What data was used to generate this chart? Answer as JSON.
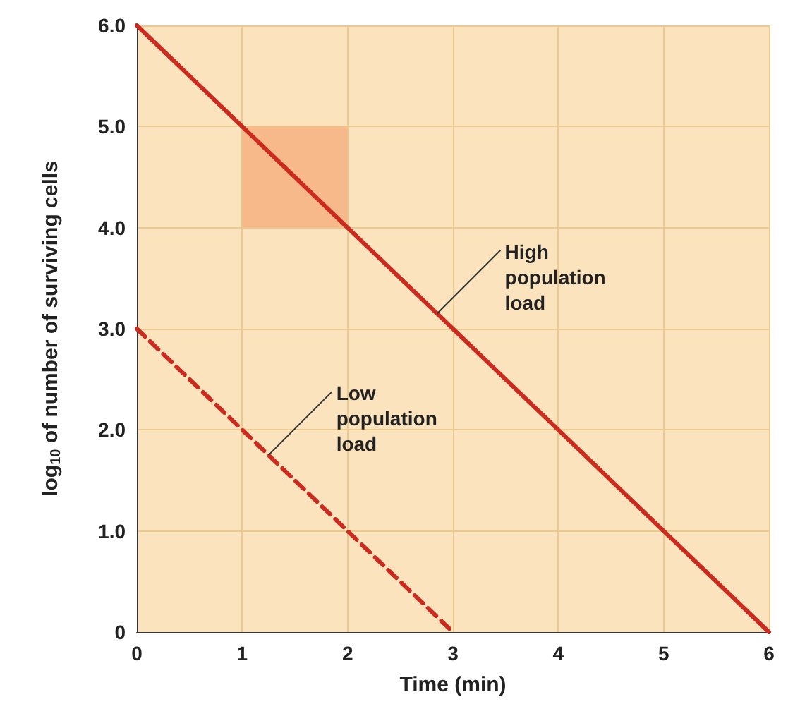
{
  "chart_data": {
    "type": "line",
    "xlabel": "Time (min)",
    "ylabel": "log$_{10}$ of number of surviving cells",
    "xlim": [
      0,
      6
    ],
    "xticks": [
      0,
      1,
      2,
      3,
      4,
      5,
      6
    ],
    "ylim": [
      0,
      6
    ],
    "yticks": [
      {
        "value": 0,
        "label": "0"
      },
      {
        "value": 1,
        "label": "1.0"
      },
      {
        "value": 2,
        "label": "2.0"
      },
      {
        "value": 3,
        "label": "3.0"
      },
      {
        "value": 4,
        "label": "4.0"
      },
      {
        "value": 5,
        "label": "5.0"
      },
      {
        "value": 6,
        "label": "6.0"
      }
    ],
    "grid": true,
    "marker": "none",
    "series": [
      {
        "type": "bar",
        "color": "#f7b98a",
        "x": [
          1.5
        ],
        "values": [
          1
        ],
        "base": [
          4
        ]
      },
      {
        "color": "#cc2a1e",
        "x": [
          0,
          6
        ],
        "values": [
          6,
          0
        ],
        "line_style": "solid"
      },
      {
        "color": "#cc2a1e",
        "x": [
          0,
          3
        ],
        "values": [
          3,
          0
        ],
        "line_style": "dashed"
      }
    ],
    "annotations": [
      {
        "text": "High population load",
        "x": 2.85,
        "y": 3.15
      },
      {
        "text": "Low population load",
        "x": 1.25,
        "y": 1.75
      }
    ]
  }
}
